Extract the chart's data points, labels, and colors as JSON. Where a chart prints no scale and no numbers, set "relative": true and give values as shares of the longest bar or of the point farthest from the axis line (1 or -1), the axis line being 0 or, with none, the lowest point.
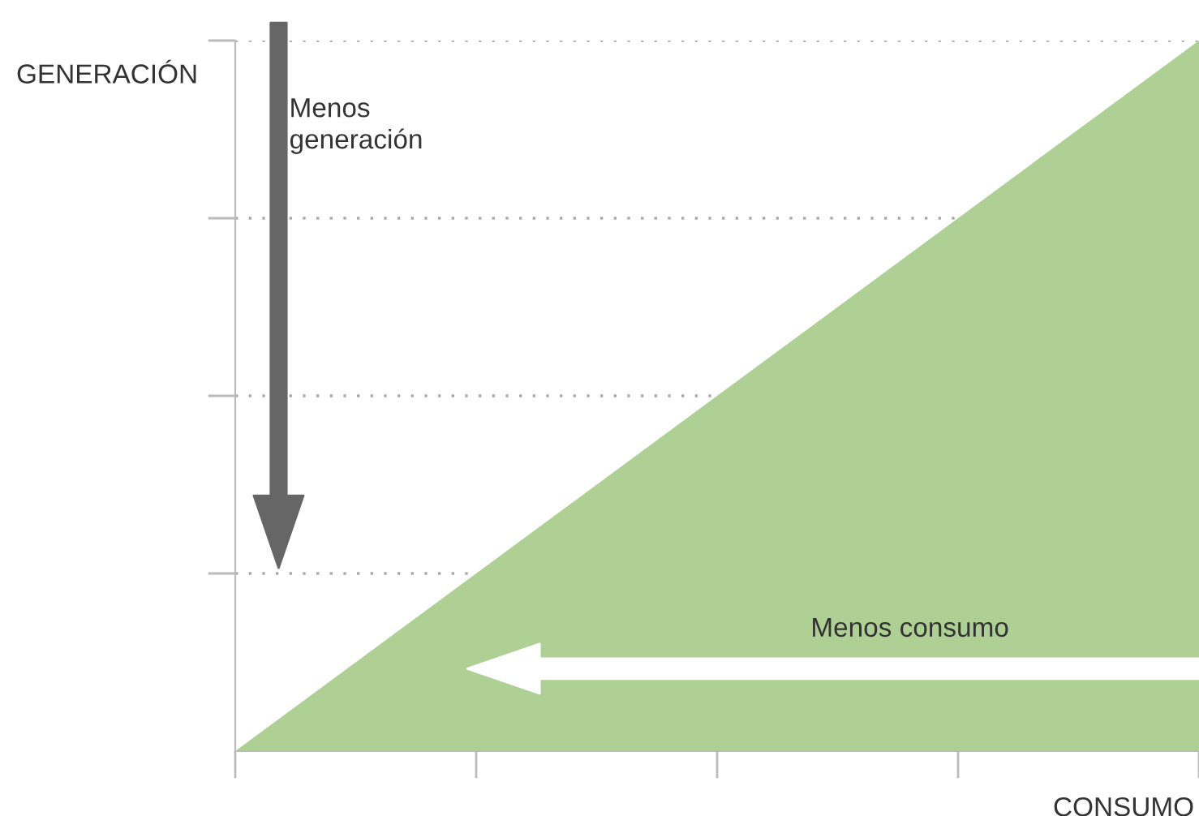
{
  "chart_data": {
    "type": "area",
    "relative": true,
    "xlabel": "CONSUMO",
    "ylabel": "GENERACIÓN",
    "categories": [
      null,
      null,
      null,
      null,
      null
    ],
    "series": [
      {
        "color": "#aed095",
        "values": [
          0,
          0.25,
          0.5,
          0.75,
          1
        ]
      }
    ],
    "grid": "y",
    "annotations": [
      "Menos\ngeneración",
      "Menos consumo"
    ]
  }
}
